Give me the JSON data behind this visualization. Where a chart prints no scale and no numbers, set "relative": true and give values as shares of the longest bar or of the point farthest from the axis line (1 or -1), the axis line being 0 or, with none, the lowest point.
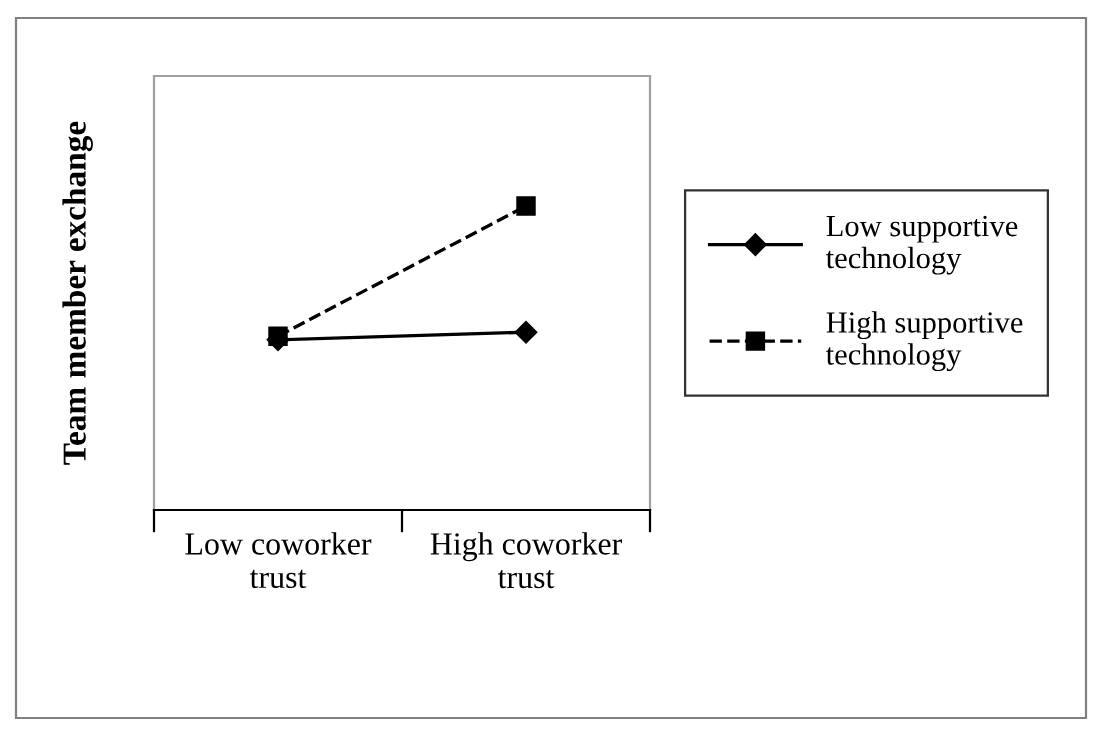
{
  "chart_data": {
    "type": "line",
    "relative": true,
    "ylabel": "Team member exchange",
    "categories": [
      "Low coworker\ntrust",
      "High coworker\ntrust"
    ],
    "series": [
      {
        "name": "Low supportive\ntechnology",
        "color": "#000000",
        "values": [
          0.56,
          0.585
        ],
        "marker": "diamond",
        "line_style": "solid"
      },
      {
        "name": "High supportive\ntechnology",
        "color": "#000000",
        "values": [
          0.572,
          1
        ],
        "marker": "square",
        "line_style": "dashed"
      }
    ],
    "legend": "right",
    "grid": false
  }
}
